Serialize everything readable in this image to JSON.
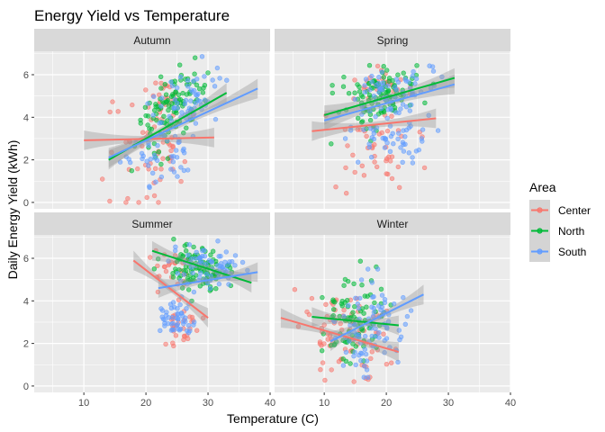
{
  "chart_data": {
    "type": "scatter",
    "title": "Energy Yield vs Temperature",
    "xlabel": "Temperature (C)",
    "ylabel": "Daily Energy Yield (kWh)",
    "xlim": [
      2,
      40
    ],
    "ylim": [
      -0.3,
      7.1
    ],
    "x_ticks": [
      10,
      20,
      30,
      40
    ],
    "y_ticks": [
      0,
      2,
      4,
      6
    ],
    "grid": true,
    "legend": {
      "title": "Area",
      "position": "right",
      "entries": [
        {
          "name": "Center",
          "color": "#F8766D"
        },
        {
          "name": "North",
          "color": "#00BA38"
        },
        {
          "name": "South",
          "color": "#619CFF"
        }
      ]
    },
    "panels": [
      {
        "name": "Autumn",
        "clusters": [
          {
            "series": "Center",
            "n": 55,
            "x_range": [
              10,
              31
            ],
            "y_mean": 2.6,
            "y_sd": 1.1,
            "slope": 0.0
          },
          {
            "series": "Center",
            "n": 20,
            "x_range": [
              19,
              27
            ],
            "y_mean": 5.1,
            "y_sd": 0.4,
            "slope": 0.0
          },
          {
            "series": "North",
            "n": 110,
            "x_range": [
              15,
              32
            ],
            "y_mean": 4.2,
            "y_sd": 0.9,
            "slope": 0.18
          },
          {
            "series": "South",
            "n": 45,
            "x_range": [
              14,
              31
            ],
            "y_mean": 2.2,
            "y_sd": 0.6,
            "slope": 0.05
          },
          {
            "series": "South",
            "n": 60,
            "x_range": [
              18,
              36
            ],
            "y_mean": 4.8,
            "y_sd": 0.7,
            "slope": 0.1
          }
        ],
        "fits": [
          {
            "series": "Center",
            "x": [
              10,
              31
            ],
            "y": [
              2.92,
              3.05
            ]
          },
          {
            "series": "North",
            "x": [
              14,
              33
            ],
            "y": [
              2.0,
              5.15
            ]
          },
          {
            "series": "South",
            "x": [
              14,
              38
            ],
            "y": [
              2.1,
              5.35
            ]
          }
        ]
      },
      {
        "name": "Spring",
        "clusters": [
          {
            "series": "Center",
            "n": 45,
            "x_range": [
              8,
              28
            ],
            "y_mean": 2.8,
            "y_sd": 1.0,
            "slope": 0.02
          },
          {
            "series": "Center",
            "n": 25,
            "x_range": [
              14,
              26
            ],
            "y_mean": 5.5,
            "y_sd": 0.4,
            "slope": 0.0
          },
          {
            "series": "North",
            "n": 110,
            "x_range": [
              10,
              29
            ],
            "y_mean": 5.0,
            "y_sd": 0.9,
            "slope": 0.05
          },
          {
            "series": "South",
            "n": 70,
            "x_range": [
              10,
              31
            ],
            "y_mean": 5.3,
            "y_sd": 0.6,
            "slope": 0.03
          },
          {
            "series": "South",
            "n": 50,
            "x_range": [
              10,
              30
            ],
            "y_mean": 2.8,
            "y_sd": 0.7,
            "slope": 0.0
          }
        ],
        "fits": [
          {
            "series": "Center",
            "x": [
              8,
              28
            ],
            "y": [
              3.35,
              3.95
            ]
          },
          {
            "series": "North",
            "x": [
              10,
              31
            ],
            "y": [
              4.1,
              5.85
            ]
          },
          {
            "series": "South",
            "x": [
              10,
              31
            ],
            "y": [
              3.85,
              5.55
            ]
          }
        ]
      },
      {
        "name": "Summer",
        "clusters": [
          {
            "series": "Center",
            "n": 25,
            "x_range": [
              18,
              29
            ],
            "y_mean": 5.6,
            "y_sd": 0.4,
            "slope": 0.0
          },
          {
            "series": "Center",
            "n": 30,
            "x_range": [
              21,
              30
            ],
            "y_mean": 2.7,
            "y_sd": 0.5,
            "slope": 0.0
          },
          {
            "series": "North",
            "n": 110,
            "x_range": [
              21,
              36
            ],
            "y_mean": 5.5,
            "y_sd": 0.5,
            "slope": -0.05
          },
          {
            "series": "South",
            "n": 70,
            "x_range": [
              21,
              38
            ],
            "y_mean": 5.7,
            "y_sd": 0.5,
            "slope": -0.03
          },
          {
            "series": "South",
            "n": 50,
            "x_range": [
              21,
              29
            ],
            "y_mean": 3.0,
            "y_sd": 0.4,
            "slope": 0.0
          }
        ],
        "fits": [
          {
            "series": "Center",
            "x": [
              18,
              30
            ],
            "y": [
              5.9,
              3.2
            ]
          },
          {
            "series": "North",
            "x": [
              21,
              37
            ],
            "y": [
              6.35,
              4.85
            ]
          },
          {
            "series": "South",
            "x": [
              22,
              38
            ],
            "y": [
              4.6,
              5.35
            ]
          }
        ]
      },
      {
        "name": "Winter",
        "clusters": [
          {
            "series": "Center",
            "n": 80,
            "x_range": [
              3,
              24
            ],
            "y_mean": 2.5,
            "y_sd": 1.0,
            "slope": -0.08
          },
          {
            "series": "North",
            "n": 90,
            "x_range": [
              8,
              22
            ],
            "y_mean": 3.0,
            "y_sd": 1.1,
            "slope": 0.0
          },
          {
            "series": "South",
            "n": 90,
            "x_range": [
              10,
              26
            ],
            "y_mean": 2.8,
            "y_sd": 1.0,
            "slope": 0.1
          }
        ],
        "fits": [
          {
            "series": "Center",
            "x": [
              3,
              22
            ],
            "y": [
              3.2,
              1.6
            ]
          },
          {
            "series": "North",
            "x": [
              8,
              22
            ],
            "y": [
              3.25,
              2.85
            ]
          },
          {
            "series": "South",
            "x": [
              11,
              26
            ],
            "y": [
              2.1,
              4.3
            ]
          }
        ]
      }
    ]
  }
}
